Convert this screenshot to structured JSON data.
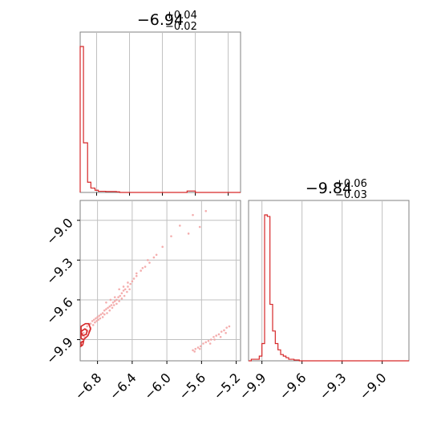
{
  "chart_data": [
    {
      "type": "histogram",
      "panel": "marginal-x",
      "title_value": "−6.94",
      "title_plus": "+0.04",
      "title_minus": "−0.02",
      "xlim": [
        -7.0,
        -5.05
      ],
      "grid": true,
      "line_color": "#d62728",
      "bins": [
        {
          "x0": -7.0,
          "x1": -6.96,
          "count": 1.0
        },
        {
          "x0": -6.96,
          "x1": -6.91,
          "count": 0.34
        },
        {
          "x0": -6.91,
          "x1": -6.87,
          "count": 0.07
        },
        {
          "x0": -6.87,
          "x1": -6.82,
          "count": 0.03
        },
        {
          "x0": -6.82,
          "x1": -6.78,
          "count": 0.015
        },
        {
          "x0": -6.78,
          "x1": -6.69,
          "count": 0.008
        },
        {
          "x0": -6.69,
          "x1": -6.56,
          "count": 0.006
        },
        {
          "x0": -6.56,
          "x1": -6.52,
          "count": 0.004
        },
        {
          "x0": -6.52,
          "x1": -5.7,
          "count": 0.0
        },
        {
          "x0": -5.7,
          "x1": -5.6,
          "count": 0.01
        },
        {
          "x0": -5.6,
          "x1": -5.05,
          "count": 0.0
        }
      ]
    },
    {
      "type": "histogram",
      "panel": "marginal-y",
      "title_value": "−9.84",
      "title_plus": "+0.06",
      "title_minus": "−0.03",
      "xlim": [
        -10.0,
        -8.8
      ],
      "xticks": [
        -9.9,
        -9.6,
        -9.3,
        -9.0
      ],
      "xtick_labels": [
        "−9.9",
        "−9.6",
        "−9.3",
        "−9.0"
      ],
      "grid": true,
      "line_color": "#d62728",
      "bins": [
        {
          "x0": -10.0,
          "x1": -9.98,
          "count": 0.0
        },
        {
          "x0": -9.98,
          "x1": -9.92,
          "count": 0.01
        },
        {
          "x0": -9.92,
          "x1": -9.9,
          "count": 0.03
        },
        {
          "x0": -9.9,
          "x1": -9.88,
          "count": 0.11
        },
        {
          "x0": -9.88,
          "x1": -9.86,
          "count": 0.93
        },
        {
          "x0": -9.86,
          "x1": -9.84,
          "count": 0.92
        },
        {
          "x0": -9.84,
          "x1": -9.82,
          "count": 0.36
        },
        {
          "x0": -9.82,
          "x1": -9.8,
          "count": 0.19
        },
        {
          "x0": -9.8,
          "x1": -9.78,
          "count": 0.11
        },
        {
          "x0": -9.78,
          "x1": -9.76,
          "count": 0.07
        },
        {
          "x0": -9.76,
          "x1": -9.74,
          "count": 0.04
        },
        {
          "x0": -9.74,
          "x1": -9.72,
          "count": 0.03
        },
        {
          "x0": -9.72,
          "x1": -9.7,
          "count": 0.02
        },
        {
          "x0": -9.7,
          "x1": -9.66,
          "count": 0.01
        },
        {
          "x0": -9.66,
          "x1": -9.62,
          "count": 0.005
        },
        {
          "x0": -9.62,
          "x1": -8.8,
          "count": 0.0
        }
      ]
    },
    {
      "type": "scatter",
      "panel": "joint",
      "xlim": [
        -7.0,
        -5.15
      ],
      "ylim": [
        -10.06,
        -8.85
      ],
      "xticks": [
        -6.8,
        -6.4,
        -6.0,
        -5.6,
        -5.2
      ],
      "xtick_labels": [
        "−6.8",
        "−6.4",
        "−6.0",
        "−5.6",
        "−5.2"
      ],
      "yticks": [
        -9.9,
        -9.6,
        -9.3,
        -9.0
      ],
      "ytick_labels": [
        "−9.9",
        "−9.6",
        "−9.3",
        "−9.0"
      ],
      "grid": true,
      "point_color": "#f2a0a0",
      "contour_color": "#d62728",
      "contours": [
        [
          [
            -6.99,
            -9.8
          ],
          [
            -6.94,
            -9.78
          ],
          [
            -6.9,
            -9.78
          ],
          [
            -6.88,
            -9.82
          ],
          [
            -6.91,
            -9.87
          ],
          [
            -6.96,
            -9.9
          ],
          [
            -6.99,
            -9.89
          ]
        ],
        [
          [
            -6.99,
            -9.84
          ],
          [
            -6.95,
            -9.82
          ],
          [
            -6.92,
            -9.83
          ],
          [
            -6.93,
            -9.86
          ],
          [
            -6.97,
            -9.87
          ]
        ],
        [
          [
            -6.99,
            -9.92
          ],
          [
            -6.96,
            -9.91
          ],
          [
            -6.97,
            -9.94
          ],
          [
            -6.99,
            -9.95
          ]
        ]
      ],
      "points": [
        [
          -6.98,
          -9.83
        ],
        [
          -6.96,
          -9.85
        ],
        [
          -6.94,
          -9.82
        ],
        [
          -6.92,
          -9.8
        ],
        [
          -6.9,
          -9.79
        ],
        [
          -6.88,
          -9.78
        ],
        [
          -6.86,
          -9.76
        ],
        [
          -6.84,
          -9.75
        ],
        [
          -6.82,
          -9.74
        ],
        [
          -6.8,
          -9.73
        ],
        [
          -6.78,
          -9.72
        ],
        [
          -6.76,
          -9.71
        ],
        [
          -6.74,
          -9.7
        ],
        [
          -6.72,
          -9.68
        ],
        [
          -6.7,
          -9.67
        ],
        [
          -6.68,
          -9.66
        ],
        [
          -6.66,
          -9.65
        ],
        [
          -6.64,
          -9.64
        ],
        [
          -6.62,
          -9.62
        ],
        [
          -6.6,
          -9.61
        ],
        [
          -6.58,
          -9.6
        ],
        [
          -6.56,
          -9.58
        ],
        [
          -6.54,
          -9.57
        ],
        [
          -6.52,
          -9.55
        ],
        [
          -6.5,
          -9.53
        ],
        [
          -6.48,
          -9.52
        ],
        [
          -6.45,
          -9.5
        ],
        [
          -6.42,
          -9.48
        ],
        [
          -6.4,
          -9.46
        ],
        [
          -6.38,
          -9.44
        ],
        [
          -6.35,
          -9.42
        ],
        [
          -6.3,
          -9.38
        ],
        [
          -6.25,
          -9.35
        ],
        [
          -6.2,
          -9.32
        ],
        [
          -6.15,
          -9.28
        ],
        [
          -6.05,
          -9.2
        ],
        [
          -5.95,
          -9.12
        ],
        [
          -5.85,
          -9.04
        ],
        [
          -5.7,
          -8.96
        ],
        [
          -5.55,
          -8.93
        ],
        [
          -5.62,
          -9.05
        ],
        [
          -5.75,
          -9.1
        ],
        [
          -6.88,
          -9.81
        ],
        [
          -6.85,
          -9.79
        ],
        [
          -6.83,
          -9.77
        ],
        [
          -6.81,
          -9.76
        ],
        [
          -6.79,
          -9.75
        ],
        [
          -6.77,
          -9.74
        ],
        [
          -6.74,
          -9.73
        ],
        [
          -6.72,
          -9.71
        ],
        [
          -6.69,
          -9.7
        ],
        [
          -6.66,
          -9.68
        ],
        [
          -6.63,
          -9.66
        ],
        [
          -6.61,
          -9.64
        ],
        [
          -6.58,
          -9.63
        ],
        [
          -6.55,
          -9.61
        ],
        [
          -6.52,
          -9.59
        ],
        [
          -6.49,
          -9.57
        ],
        [
          -6.46,
          -9.54
        ],
        [
          -6.43,
          -9.52
        ],
        [
          -6.95,
          -9.88
        ],
        [
          -6.93,
          -9.86
        ],
        [
          -6.91,
          -9.84
        ],
        [
          -6.89,
          -9.83
        ],
        [
          -6.97,
          -9.92
        ],
        [
          -6.99,
          -9.94
        ],
        [
          -6.7,
          -9.62
        ],
        [
          -6.65,
          -9.6
        ],
        [
          -6.55,
          -9.52
        ],
        [
          -6.45,
          -9.47
        ],
        [
          -6.35,
          -9.4
        ],
        [
          -6.28,
          -9.36
        ],
        [
          -6.22,
          -9.3
        ],
        [
          -6.12,
          -9.26
        ],
        [
          -6.6,
          -9.58
        ],
        [
          -6.5,
          -9.5
        ],
        [
          -5.7,
          -9.98
        ],
        [
          -5.67,
          -9.97
        ],
        [
          -5.64,
          -9.96
        ],
        [
          -5.61,
          -9.95
        ],
        [
          -5.58,
          -9.93
        ],
        [
          -5.55,
          -9.92
        ],
        [
          -5.52,
          -9.91
        ],
        [
          -5.49,
          -9.9
        ],
        [
          -5.46,
          -9.88
        ],
        [
          -5.43,
          -9.87
        ],
        [
          -5.4,
          -9.86
        ],
        [
          -5.37,
          -9.84
        ],
        [
          -5.34,
          -9.83
        ],
        [
          -5.31,
          -9.81
        ],
        [
          -5.28,
          -9.8
        ],
        [
          -5.68,
          -9.99
        ],
        [
          -5.62,
          -9.97
        ],
        [
          -5.5,
          -9.93
        ],
        [
          -5.45,
          -9.9
        ],
        [
          -5.38,
          -9.88
        ],
        [
          -5.32,
          -9.85
        ]
      ]
    }
  ]
}
